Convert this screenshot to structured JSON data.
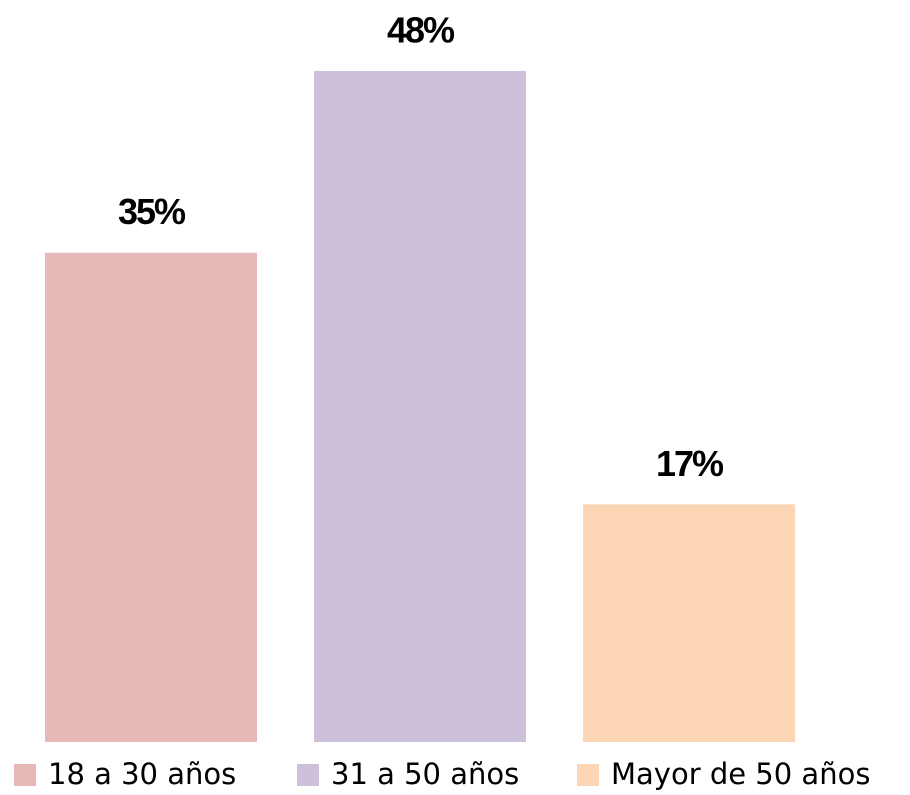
{
  "chart_data": {
    "type": "bar",
    "categories": [
      "18 a 30 años",
      "31 a 50 años",
      "Mayor de 50 años"
    ],
    "values": [
      35,
      48,
      17
    ],
    "value_labels": [
      "35%",
      "48%",
      "17%"
    ],
    "colors": [
      "#e6b8b7",
      "#ccc0da",
      "#fcd5b4"
    ],
    "legend": "bottom"
  }
}
